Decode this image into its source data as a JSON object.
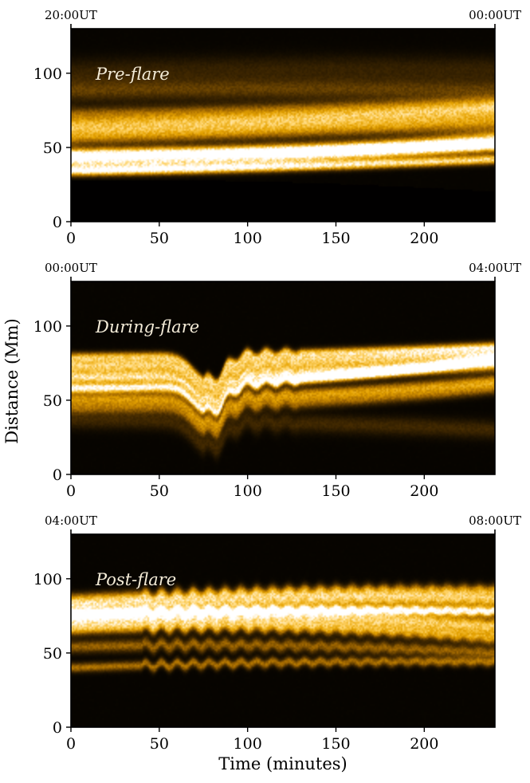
{
  "chart_data": {
    "type": "heatmap",
    "ylabel": "Distance (Mm)",
    "xlabel": "Time (minutes)",
    "xlim": [
      0,
      240
    ],
    "ylim": [
      0,
      130
    ],
    "xticks": [
      0,
      50,
      100,
      150,
      200
    ],
    "yticks": [
      0,
      50,
      100
    ],
    "colormap": [
      "#000000",
      "#4a2e00",
      "#a66b00",
      "#e6a300",
      "#ffd46a",
      "#ffffff"
    ],
    "panels": [
      {
        "label": "Pre-flare",
        "start_time": "20:00UT",
        "end_time": "00:00UT",
        "bands": [
          {
            "y0": 40,
            "y1": 40,
            "y2": 55,
            "w": 6,
            "i": 0.75
          },
          {
            "y0": 45,
            "y1": 47,
            "y2": 52,
            "w": 4,
            "i": 0.9
          },
          {
            "y0": 34,
            "y1": 36,
            "y2": 42,
            "w": 3,
            "i": 0.8
          },
          {
            "y0": 58,
            "y1": 62,
            "y2": 68,
            "w": 6,
            "i": 0.55
          },
          {
            "y0": 65,
            "y1": 68,
            "y2": 76,
            "w": 5,
            "i": 0.5
          },
          {
            "y0": 72,
            "y1": 74,
            "y2": 80,
            "w": 5,
            "i": 0.35
          },
          {
            "y0": 88,
            "y1": 90,
            "y2": 88,
            "w": 7,
            "i": 0.22
          },
          {
            "y0": 100,
            "y1": 104,
            "y2": 102,
            "w": 9,
            "i": 0.12
          }
        ],
        "dark_below": [
          28,
          29,
          20
        ]
      },
      {
        "label": "During-flare",
        "start_time": "00:00UT",
        "end_time": "04:00UT",
        "bands": [
          {
            "y0": 58,
            "y1": 58,
            "y2": 78,
            "w": 3,
            "i": 1.0
          },
          {
            "y0": 65,
            "y1": 66,
            "y2": 74,
            "w": 4,
            "i": 0.8
          },
          {
            "y0": 73,
            "y1": 74,
            "y2": 82,
            "w": 5,
            "i": 0.75
          },
          {
            "y0": 79,
            "y1": 80,
            "y2": 86,
            "w": 3,
            "i": 0.55
          },
          {
            "y0": 51,
            "y1": 50,
            "y2": 63,
            "w": 4,
            "i": 0.5
          },
          {
            "y0": 45,
            "y1": 44,
            "y2": 58,
            "w": 4,
            "i": 0.35
          },
          {
            "y0": 37,
            "y1": 36,
            "y2": 30,
            "w": 6,
            "i": 0.15
          }
        ],
        "dip": {
          "t": 78,
          "width": 12,
          "depth": 18
        },
        "wave": {
          "t0": 75,
          "t1": 130,
          "amp": 4,
          "period": 11
        }
      },
      {
        "label": "Post-flare",
        "start_time": "04:00UT",
        "end_time": "08:00UT",
        "bands": [
          {
            "y0": 76,
            "y1": 80,
            "y2": 78,
            "w": 3,
            "i": 1.0
          },
          {
            "y0": 72,
            "y1": 78,
            "y2": 68,
            "w": 5,
            "i": 0.75
          },
          {
            "y0": 81,
            "y1": 88,
            "y2": 86,
            "w": 5,
            "i": 0.7
          },
          {
            "y0": 66,
            "y1": 72,
            "y2": 60,
            "w": 4,
            "i": 0.55
          },
          {
            "y0": 86,
            "y1": 93,
            "y2": 92,
            "w": 4,
            "i": 0.45
          },
          {
            "y0": 54,
            "y1": 58,
            "y2": 50,
            "w": 4,
            "i": 0.35
          },
          {
            "y0": 40,
            "y1": 45,
            "y2": 44,
            "w": 3,
            "i": 0.4
          }
        ],
        "wave": {
          "t0": 40,
          "t1": 240,
          "amp": 2,
          "period": 9
        }
      }
    ]
  }
}
